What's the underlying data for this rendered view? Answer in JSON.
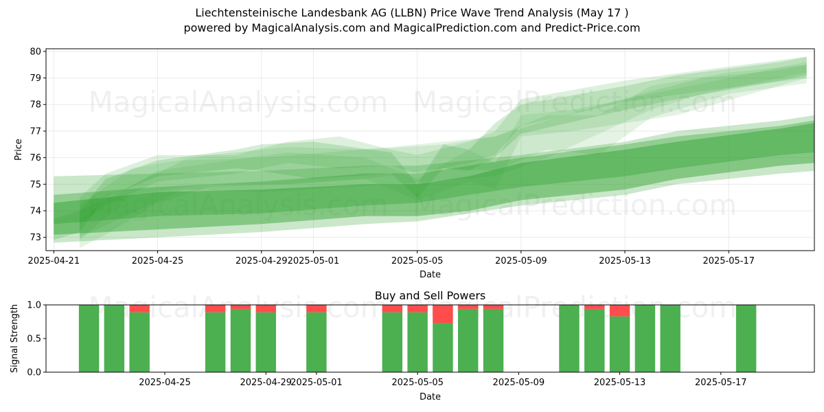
{
  "figure": {
    "title": "Liechtensteinische Landesbank AG (LLBN) Price Wave Trend Analysis (May 17 )",
    "subtitle": "powered by MagicalAnalysis.com and MagicalPrediction.com and Predict-Price.com",
    "watermarks": [
      "MagicalAnalysis.com",
      "MagicalPrediction.com"
    ],
    "colors": {
      "band": "#2ca02c",
      "buy": "#4caf50",
      "sell": "#ff4c4c"
    }
  },
  "chart_data": [
    {
      "type": "area",
      "title": "",
      "xlabel": "Date",
      "ylabel": "Price",
      "x_start": "2025-04-21",
      "x_range_days": [
        -0.3,
        29.3
      ],
      "ylim": [
        72.5,
        80.1
      ],
      "xticks": [
        {
          "day": 0,
          "label": "2025-04-21"
        },
        {
          "day": 4,
          "label": "2025-04-25"
        },
        {
          "day": 8,
          "label": "2025-04-29"
        },
        {
          "day": 10,
          "label": "2025-05-01"
        },
        {
          "day": 14,
          "label": "2025-05-05"
        },
        {
          "day": 18,
          "label": "2025-05-09"
        },
        {
          "day": 22,
          "label": "2025-05-13"
        },
        {
          "day": 26,
          "label": "2025-05-17"
        }
      ],
      "yticks": [
        73,
        74,
        75,
        76,
        77,
        78,
        79,
        80
      ],
      "grid": true,
      "bands": [
        {
          "days": [
            0,
            4,
            8,
            12,
            14,
            16,
            18,
            22,
            24,
            28,
            29.3
          ],
          "lower": [
            73.1,
            73.3,
            73.5,
            73.8,
            73.8,
            74.0,
            74.4,
            74.8,
            75.2,
            75.7,
            75.8
          ],
          "upper": [
            74.3,
            74.7,
            74.8,
            75.0,
            75.0,
            75.3,
            75.8,
            76.3,
            76.6,
            77.1,
            77.3
          ],
          "alpha": 0.45
        },
        {
          "days": [
            0,
            4,
            8,
            12,
            14,
            16,
            18,
            22,
            24,
            28,
            29.3
          ],
          "lower": [
            72.8,
            73.0,
            73.2,
            73.5,
            73.6,
            73.9,
            74.2,
            74.6,
            75.0,
            75.4,
            75.5
          ],
          "upper": [
            75.3,
            75.4,
            75.5,
            75.7,
            75.7,
            75.9,
            76.1,
            76.6,
            77.0,
            77.4,
            77.6
          ],
          "alpha": 0.25
        },
        {
          "days": [
            0,
            4,
            8,
            12,
            14,
            16,
            18,
            22,
            24,
            28,
            29.3
          ],
          "lower": [
            73.5,
            73.8,
            73.9,
            74.2,
            74.3,
            74.6,
            74.9,
            75.3,
            75.6,
            76.1,
            76.2
          ],
          "upper": [
            74.6,
            74.9,
            75.1,
            75.4,
            75.4,
            75.7,
            76.0,
            76.5,
            76.8,
            77.2,
            77.4
          ],
          "alpha": 0.35
        },
        {
          "days": [
            0,
            1,
            2,
            4,
            7,
            8,
            10,
            13,
            14,
            15,
            16,
            17,
            18,
            22,
            24,
            28,
            29
          ],
          "lower": [
            72.9,
            73.2,
            74.5,
            75.3,
            75.6,
            75.5,
            75.2,
            75.4,
            74.5,
            75.6,
            75.5,
            76.0,
            76.9,
            77.8,
            78.2,
            78.9,
            79.1
          ],
          "upper": [
            73.7,
            74.0,
            75.2,
            75.9,
            76.3,
            76.5,
            76.6,
            76.2,
            75.0,
            76.5,
            76.3,
            77.3,
            78.0,
            78.7,
            79.1,
            79.6,
            79.8
          ],
          "alpha": 0.2
        },
        {
          "days": [
            1,
            2,
            4,
            7,
            9,
            11,
            13,
            14,
            16,
            17,
            18,
            22,
            25,
            29
          ],
          "lower": [
            73.5,
            74.2,
            75.1,
            75.4,
            75.8,
            75.6,
            75.7,
            75.4,
            75.8,
            76.1,
            77.2,
            78.1,
            78.5,
            79.0
          ],
          "upper": [
            74.5,
            75.4,
            76.1,
            76.1,
            76.6,
            76.8,
            76.3,
            76.1,
            76.6,
            77.0,
            78.2,
            78.9,
            79.3,
            79.8
          ],
          "alpha": 0.16
        },
        {
          "days": [
            1,
            3,
            6,
            9,
            12,
            15,
            17,
            19,
            21,
            23,
            26,
            29
          ],
          "lower": [
            72.9,
            74.6,
            75.0,
            75.0,
            75.2,
            75.6,
            75.5,
            76.3,
            76.1,
            77.5,
            78.4,
            78.8
          ],
          "upper": [
            74.2,
            75.6,
            76.1,
            76.4,
            76.3,
            76.5,
            76.8,
            77.6,
            77.6,
            78.7,
            79.2,
            79.5
          ],
          "alpha": 0.13
        },
        {
          "days": [
            1,
            2,
            4,
            6,
            9,
            12,
            14,
            16,
            17,
            18,
            20,
            24,
            29
          ],
          "lower": [
            72.6,
            73.1,
            74.3,
            74.9,
            75.0,
            75.2,
            74.4,
            75.1,
            74.8,
            76.8,
            77.0,
            77.6,
            79.0
          ],
          "upper": [
            73.6,
            74.4,
            75.5,
            75.8,
            76.2,
            76.0,
            75.2,
            76.3,
            75.8,
            77.6,
            77.8,
            78.6,
            79.6
          ],
          "alpha": 0.13
        },
        {
          "days": [
            1,
            5,
            8,
            13,
            17,
            19,
            23,
            25,
            28,
            29
          ],
          "lower": [
            73.0,
            74.8,
            74.7,
            75.0,
            75.3,
            76.0,
            77.8,
            78.4,
            79.0,
            79.2
          ],
          "upper": [
            74.0,
            75.9,
            76.0,
            76.4,
            76.8,
            77.4,
            78.5,
            79.0,
            79.3,
            79.5
          ],
          "alpha": 0.12
        }
      ]
    },
    {
      "type": "bar",
      "title": "Buy and Sell Powers",
      "xlabel": "Date",
      "ylabel": "Signal Strength",
      "ylim": [
        0.0,
        1.0
      ],
      "yticks": [
        0.0,
        0.5,
        1.0
      ],
      "x_start": "2025-04-21",
      "x_range_days": [
        -0.7,
        29.7
      ],
      "xticks": [
        {
          "day": 4,
          "label": "2025-04-25"
        },
        {
          "day": 8,
          "label": "2025-04-29"
        },
        {
          "day": 10,
          "label": "2025-05-01"
        },
        {
          "day": 14,
          "label": "2025-05-05"
        },
        {
          "day": 18,
          "label": "2025-05-09"
        },
        {
          "day": 22,
          "label": "2025-05-13"
        },
        {
          "day": 26,
          "label": "2025-05-17"
        }
      ],
      "series": [
        {
          "name": "Buy",
          "values": [
            1.0,
            1.0,
            0.89,
            0.89,
            0.94,
            0.89,
            0.89,
            0.89,
            0.89,
            0.73,
            0.94,
            0.94,
            1.0,
            0.94,
            0.83,
            1.0,
            1.0,
            1.0
          ]
        },
        {
          "name": "Sell",
          "values": [
            0.0,
            0.0,
            0.11,
            0.11,
            0.06,
            0.11,
            0.11,
            0.11,
            0.11,
            0.27,
            0.06,
            0.06,
            0.0,
            0.06,
            0.17,
            0.0,
            0.0,
            0.0
          ]
        }
      ],
      "days": [
        1,
        2,
        3,
        6,
        7,
        8,
        10,
        13,
        14,
        15,
        16,
        17,
        20,
        21,
        22,
        23,
        24,
        27
      ]
    }
  ]
}
